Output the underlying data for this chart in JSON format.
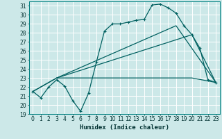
{
  "xlabel": "Humidex (Indice chaleur)",
  "background_color": "#cce8e8",
  "grid_color": "#ffffff",
  "line_color": "#006060",
  "xlim": [
    -0.5,
    23.5
  ],
  "ylim": [
    19,
    31.5
  ],
  "xticks": [
    0,
    1,
    2,
    3,
    4,
    5,
    6,
    7,
    8,
    9,
    10,
    11,
    12,
    13,
    14,
    15,
    16,
    17,
    18,
    19,
    20,
    21,
    22,
    23
  ],
  "yticks": [
    19,
    20,
    21,
    22,
    23,
    24,
    25,
    26,
    27,
    28,
    29,
    30,
    31
  ],
  "line1_x": [
    0,
    1,
    2,
    3,
    4,
    5,
    6,
    7,
    8,
    9,
    10,
    11,
    12,
    13,
    14,
    15,
    16,
    17,
    18,
    19,
    20,
    21,
    22,
    23
  ],
  "line1_y": [
    21.5,
    20.8,
    22.0,
    22.8,
    22.1,
    20.5,
    19.3,
    21.3,
    24.8,
    28.2,
    29.0,
    29.0,
    29.2,
    29.4,
    29.5,
    31.1,
    31.2,
    30.8,
    30.2,
    28.8,
    27.8,
    26.3,
    22.8,
    22.5
  ],
  "line2_x": [
    0,
    3,
    18,
    23
  ],
  "line2_y": [
    21.5,
    23.0,
    28.8,
    22.5
  ],
  "line3_x": [
    0,
    3,
    20,
    23
  ],
  "line3_y": [
    21.5,
    23.0,
    27.8,
    22.5
  ],
  "line4_x": [
    3,
    20,
    23
  ],
  "line4_y": [
    23.0,
    23.0,
    22.5
  ]
}
